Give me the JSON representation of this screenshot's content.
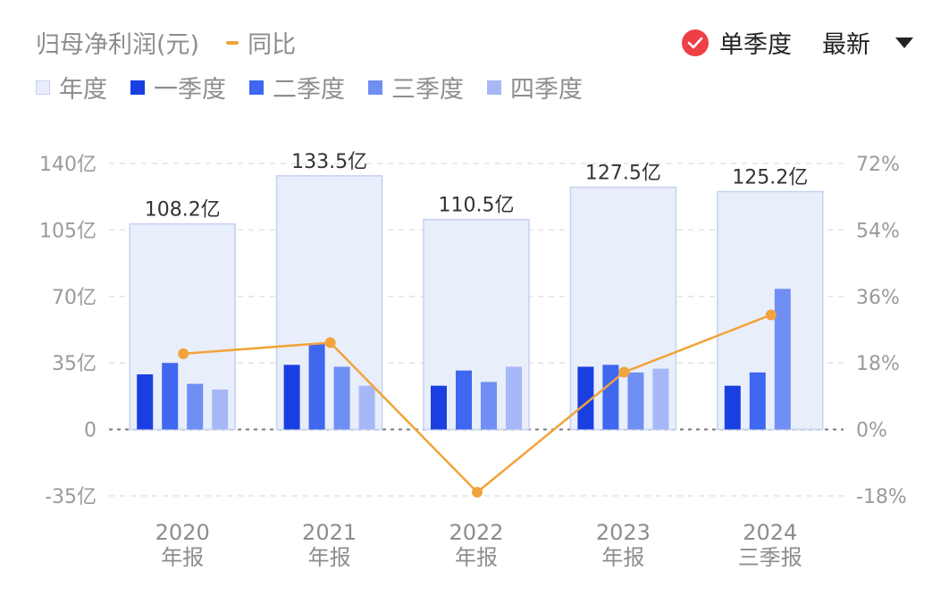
{
  "header": {
    "title": "归母净利润(元)",
    "yoy_label": "同比",
    "single_quarter_label": "单季度",
    "latest_label": "最新"
  },
  "colors": {
    "annual": "#e9eefb",
    "annual_border": "#c5d1f2",
    "q1": "#1a3fe0",
    "q2": "#3f67f0",
    "q3": "#6f8ff3",
    "q4": "#a6b8f7",
    "yoy": "#f2a33a",
    "check": "#ee3f46"
  },
  "chart_data": {
    "type": "bar",
    "categories": [
      "2020\n年报",
      "2021\n年报",
      "2022\n年报",
      "2023\n年报",
      "2024\n三季报"
    ],
    "legend": [
      "年度",
      "一季度",
      "二季度",
      "三季度",
      "四季度"
    ],
    "annual": {
      "name": "年度",
      "values": [
        108.2,
        133.5,
        110.5,
        127.5,
        125.2
      ],
      "labels": [
        "108.2亿",
        "133.5亿",
        "110.5亿",
        "127.5亿",
        "125.2亿"
      ]
    },
    "series": [
      {
        "name": "一季度",
        "values": [
          29,
          34,
          23,
          33,
          23
        ]
      },
      {
        "name": "二季度",
        "values": [
          35,
          45,
          31,
          34,
          30
        ]
      },
      {
        "name": "三季度",
        "values": [
          24,
          33,
          25,
          30,
          74
        ]
      },
      {
        "name": "四季度",
        "values": [
          21,
          23,
          33,
          32,
          null
        ]
      }
    ],
    "line": {
      "name": "同比",
      "values": [
        20.5,
        23.5,
        -17,
        15.5,
        31
      ]
    },
    "ylim_left": [
      -35,
      140
    ],
    "yticks_left": [
      140,
      105,
      70,
      35,
      0,
      -35
    ],
    "yticks_left_labels": [
      "140亿",
      "105亿",
      "70亿",
      "35亿",
      "0",
      "-35亿"
    ],
    "ylim_right": [
      -18,
      72
    ],
    "yticks_right": [
      72,
      54,
      36,
      18,
      0,
      -18
    ],
    "yticks_right_labels": [
      "72%",
      "54%",
      "36%",
      "18%",
      "0%",
      "-18%"
    ],
    "grid": true
  }
}
